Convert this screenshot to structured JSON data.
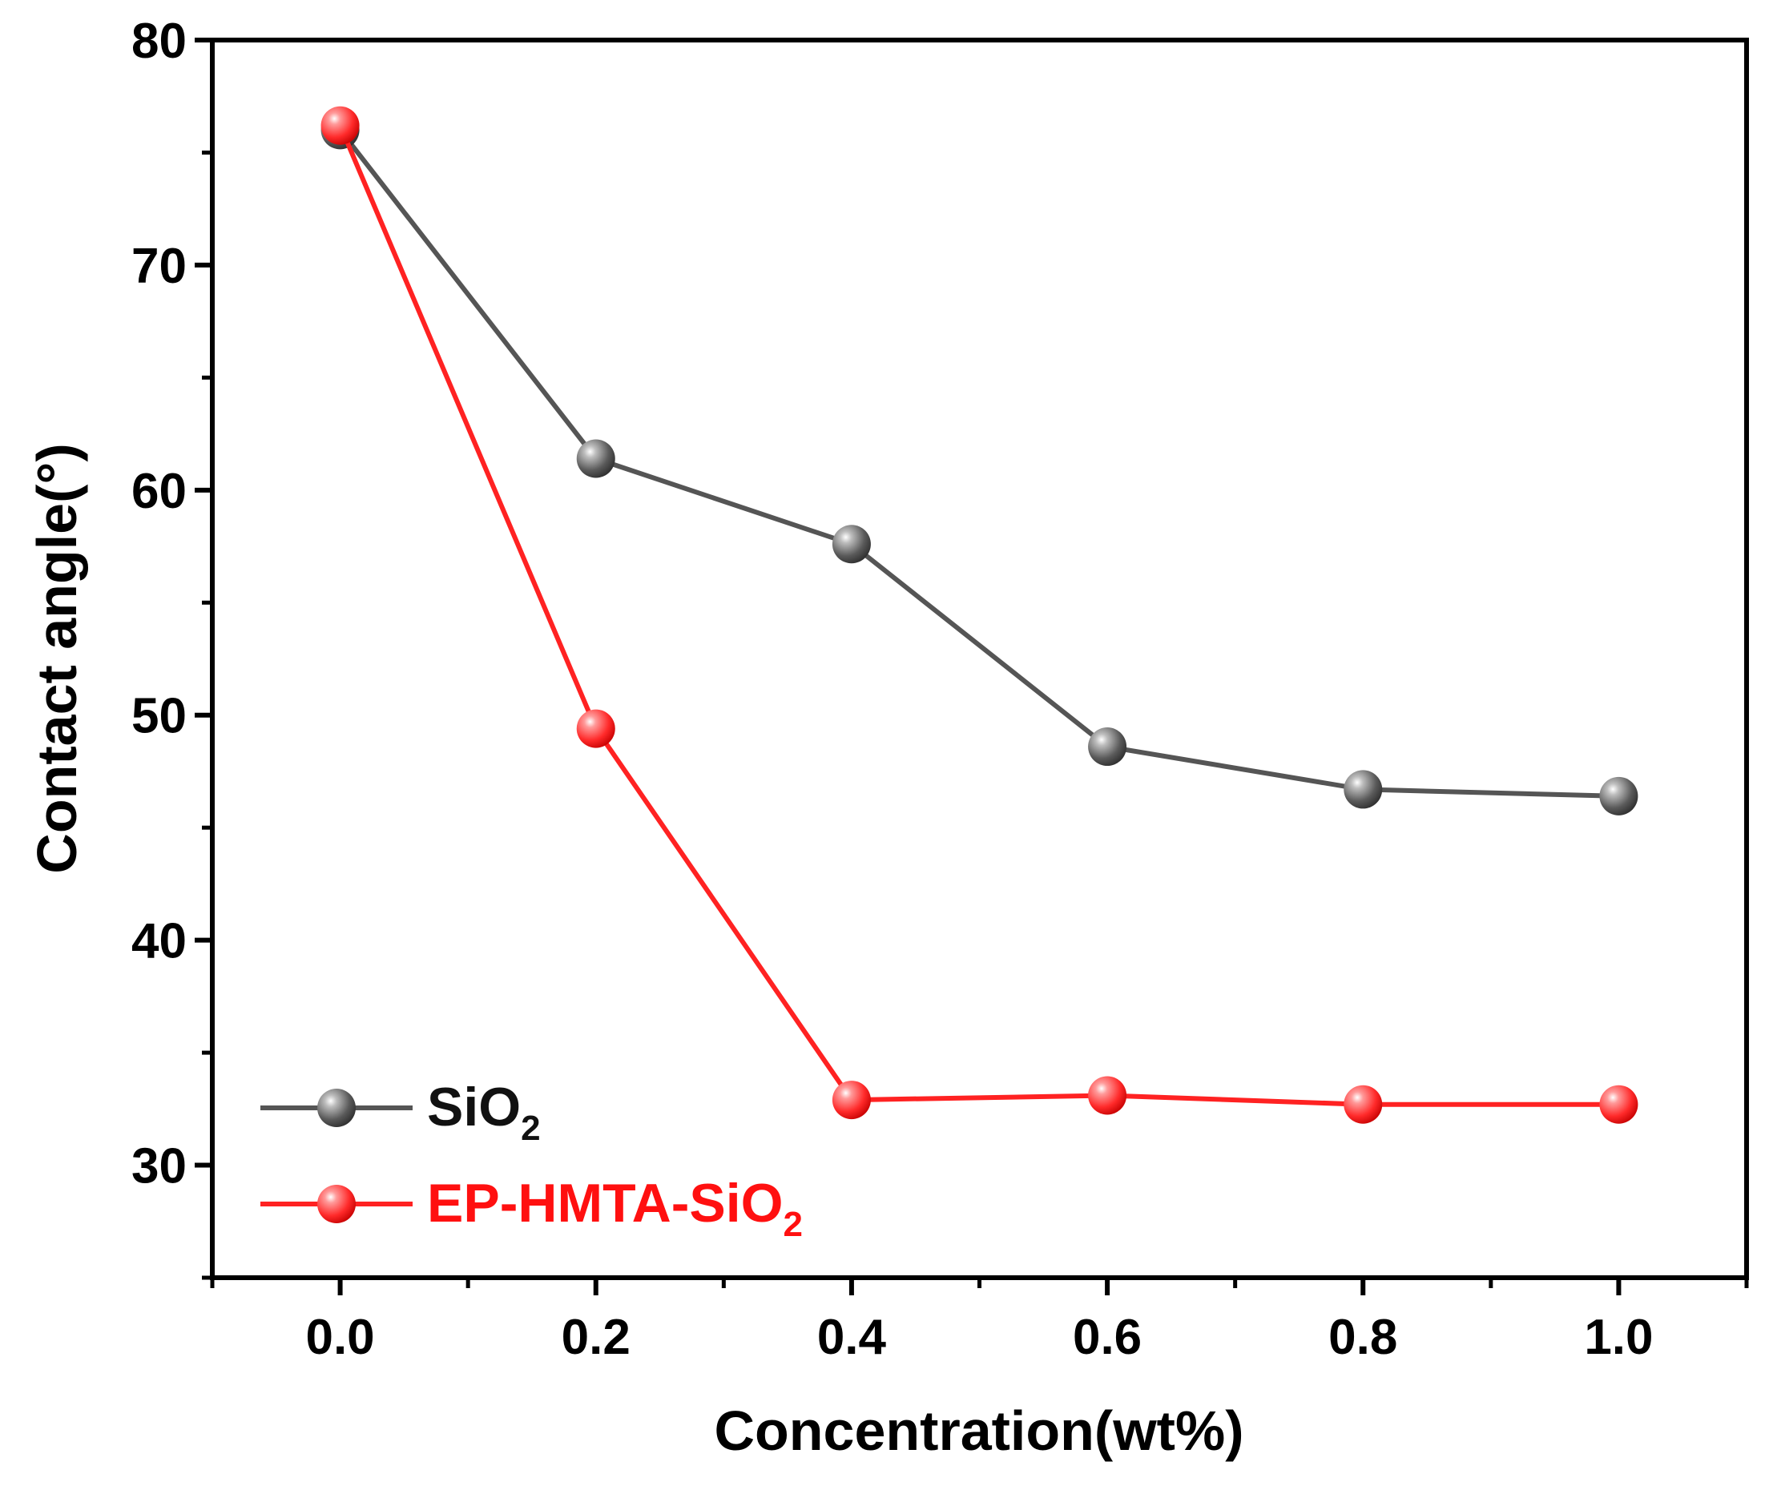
{
  "chart_data": {
    "type": "line",
    "xlabel": "Concentration(wt%)",
    "ylabel": "Contact angle(°)",
    "xlim": [
      -0.1,
      1.1
    ],
    "ylim": [
      25,
      80
    ],
    "x_ticks": [
      "0.0",
      "0.2",
      "0.4",
      "0.6",
      "0.8",
      "1.0"
    ],
    "y_ticks": [
      "30",
      "40",
      "50",
      "60",
      "70",
      "80"
    ],
    "grid": false,
    "legend_position": "bottom-left",
    "series": [
      {
        "name_main": "SiO",
        "name_sub": "2",
        "color": "#555555",
        "x": [
          0.0,
          0.2,
          0.4,
          0.6,
          0.8,
          1.0
        ],
        "values": [
          76.0,
          61.4,
          57.6,
          48.6,
          46.7,
          46.4
        ]
      },
      {
        "name_main": "EP-HMTA-SiO",
        "name_sub": "2",
        "color": "#ff2222",
        "x": [
          0.0,
          0.2,
          0.4,
          0.6,
          0.8,
          1.0
        ],
        "values": [
          76.2,
          49.4,
          32.9,
          33.1,
          32.7,
          32.7
        ]
      }
    ]
  }
}
